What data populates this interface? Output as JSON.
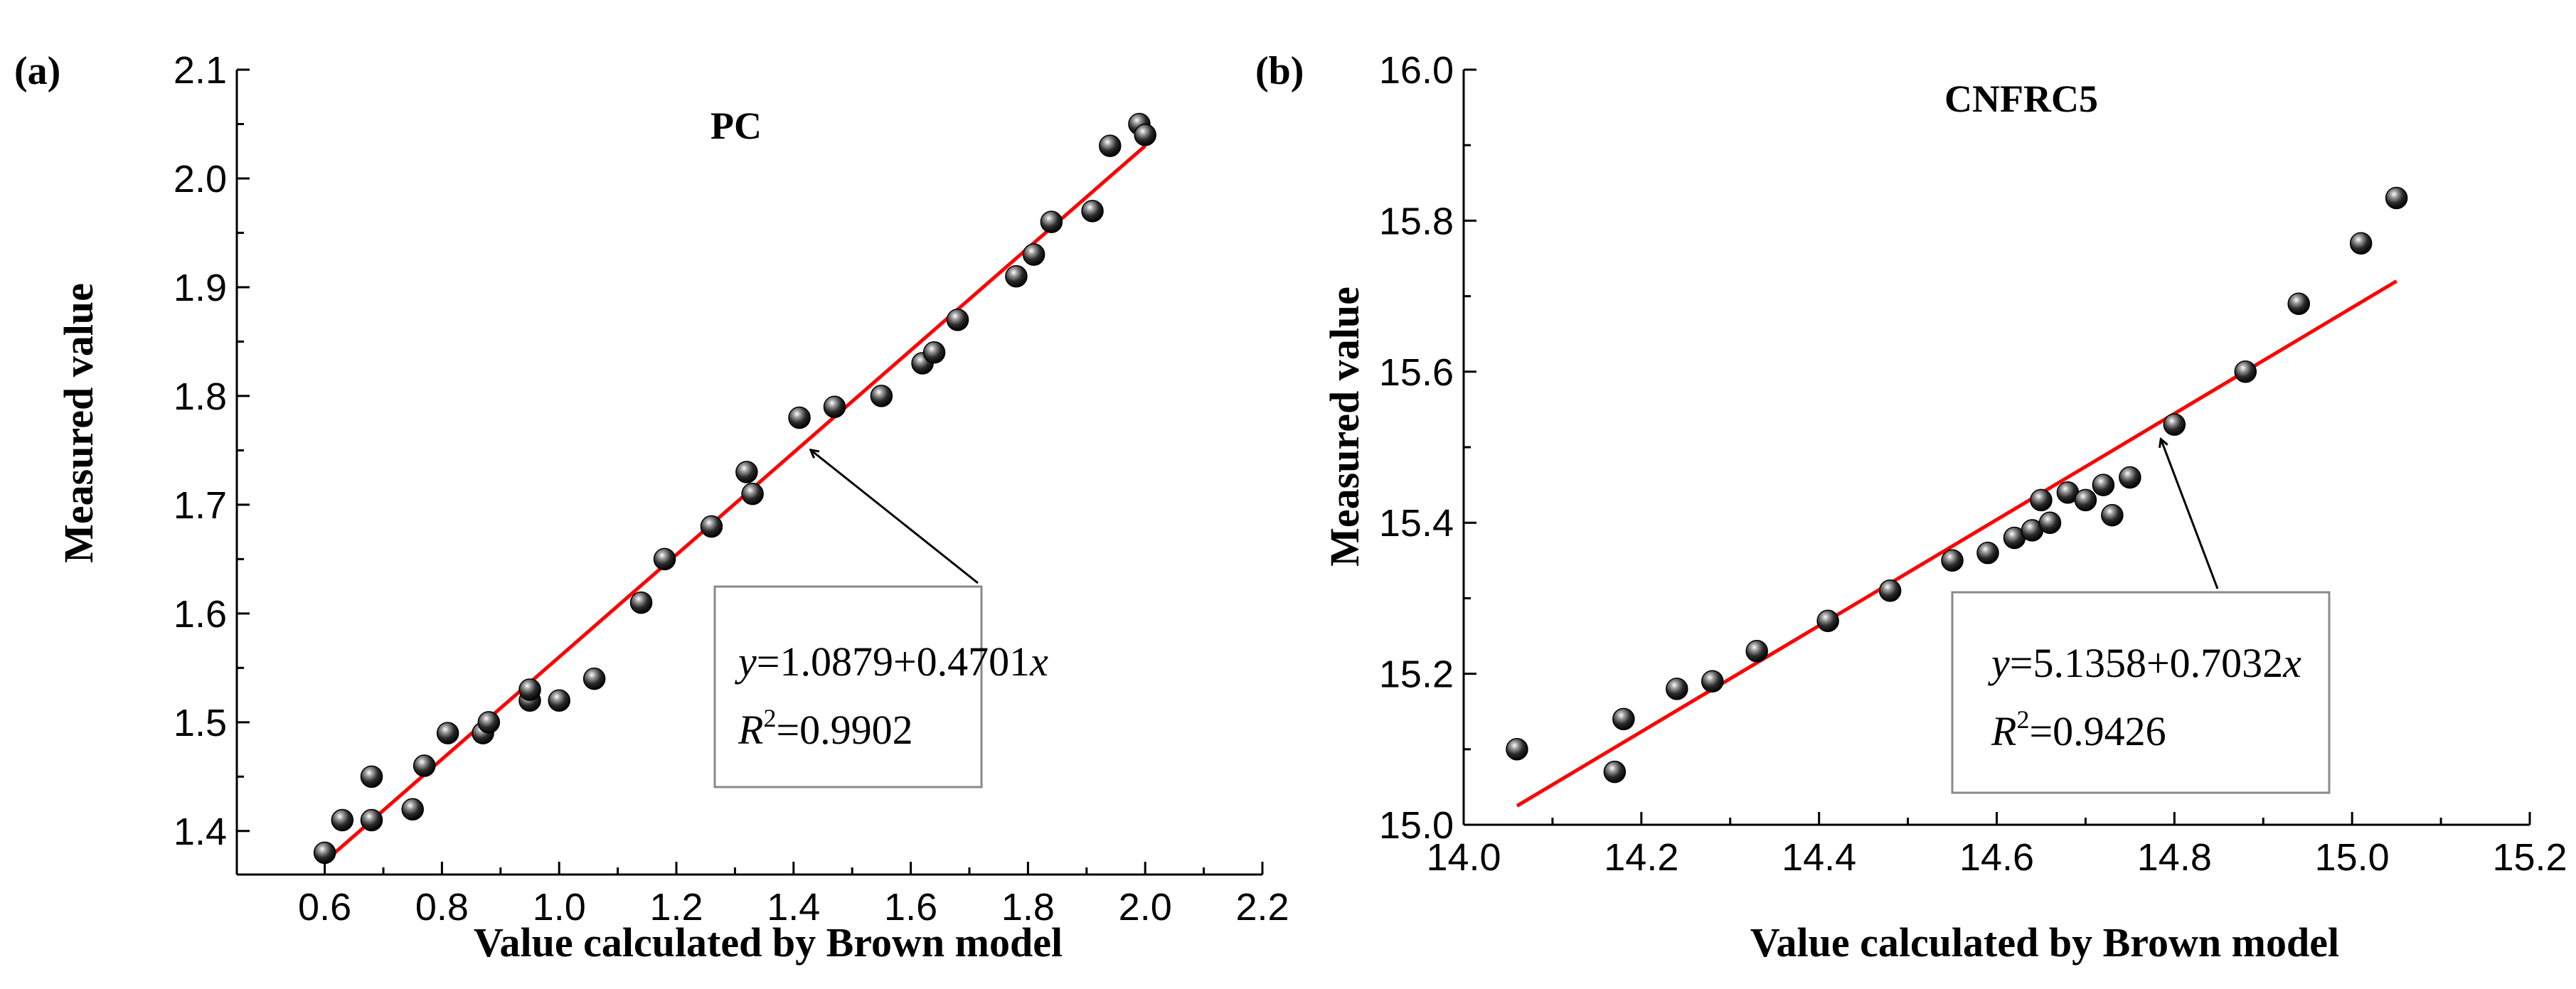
{
  "chart_data": [
    {
      "panel_label": "(a)",
      "type": "scatter",
      "title": "PC",
      "xlabel": "Value calculated by Brown model",
      "ylabel": "Measured value",
      "xlim": [
        0.45,
        2.2
      ],
      "ylim": [
        1.36,
        2.1
      ],
      "xticks": [
        0.6,
        0.8,
        1.0,
        1.2,
        1.4,
        1.6,
        1.8,
        2.0,
        2.2
      ],
      "xtick_labels": [
        "0.6",
        "0.8",
        "1.0",
        "1.2",
        "1.4",
        "1.6",
        "1.8",
        "2.0",
        "2.2"
      ],
      "yticks": [
        1.4,
        1.5,
        1.6,
        1.7,
        1.8,
        1.9,
        2.0,
        2.1
      ],
      "ytick_labels": [
        "1.4",
        "1.5",
        "1.6",
        "1.7",
        "1.8",
        "1.9",
        "2.0",
        "2.1"
      ],
      "points": [
        [
          0.6,
          1.38
        ],
        [
          0.63,
          1.41
        ],
        [
          0.68,
          1.45
        ],
        [
          0.68,
          1.41
        ],
        [
          0.75,
          1.42
        ],
        [
          0.77,
          1.46
        ],
        [
          0.81,
          1.49
        ],
        [
          0.87,
          1.49
        ],
        [
          0.88,
          1.5
        ],
        [
          0.95,
          1.52
        ],
        [
          0.95,
          1.53
        ],
        [
          1.0,
          1.52
        ],
        [
          1.06,
          1.54
        ],
        [
          1.14,
          1.61
        ],
        [
          1.18,
          1.65
        ],
        [
          1.26,
          1.68
        ],
        [
          1.32,
          1.73
        ],
        [
          1.33,
          1.71
        ],
        [
          1.41,
          1.78
        ],
        [
          1.47,
          1.79
        ],
        [
          1.55,
          1.8
        ],
        [
          1.62,
          1.83
        ],
        [
          1.64,
          1.84
        ],
        [
          1.68,
          1.87
        ],
        [
          1.78,
          1.91
        ],
        [
          1.81,
          1.93
        ],
        [
          1.84,
          1.96
        ],
        [
          1.91,
          1.97
        ],
        [
          1.94,
          2.03
        ],
        [
          1.99,
          2.05
        ],
        [
          2.0,
          2.04
        ]
      ],
      "fit_line": {
        "x_start": 0.6,
        "x_end": 2.0,
        "y_start": 1.372,
        "y_end": 2.03
      },
      "equation": {
        "y_var": "y",
        "y_rest": "=1.0879+0.4701",
        "x_var": "x",
        "r_var": "R",
        "r_sup": "2",
        "r_rest": "=0.9902"
      },
      "arrow_target": [
        1.43,
        1.75
      ]
    },
    {
      "panel_label": "(b)",
      "type": "scatter",
      "title": "CNFRC5",
      "xlabel": "Value calculated by Brown model",
      "ylabel": "Measured value",
      "xlim": [
        14.0,
        15.2
      ],
      "ylim": [
        15.0,
        16.0
      ],
      "xticks": [
        14.0,
        14.2,
        14.4,
        14.6,
        14.8,
        15.0,
        15.2
      ],
      "xtick_labels": [
        "14.0",
        "14.2",
        "14.4",
        "14.6",
        "14.8",
        "15.0",
        "15.2"
      ],
      "yticks": [
        15.0,
        15.2,
        15.4,
        15.6,
        15.8,
        16.0
      ],
      "ytick_labels": [
        "15.0",
        "15.2",
        "15.4",
        "15.6",
        "15.8",
        "16.0"
      ],
      "points": [
        [
          14.06,
          15.1
        ],
        [
          14.17,
          15.07
        ],
        [
          14.18,
          15.14
        ],
        [
          14.24,
          15.18
        ],
        [
          14.28,
          15.19
        ],
        [
          14.33,
          15.23
        ],
        [
          14.41,
          15.27
        ],
        [
          14.48,
          15.31
        ],
        [
          14.55,
          15.35
        ],
        [
          14.59,
          15.36
        ],
        [
          14.62,
          15.38
        ],
        [
          14.64,
          15.39
        ],
        [
          14.65,
          15.43
        ],
        [
          14.66,
          15.4
        ],
        [
          14.68,
          15.44
        ],
        [
          14.7,
          15.43
        ],
        [
          14.72,
          15.45
        ],
        [
          14.73,
          15.41
        ],
        [
          14.75,
          15.46
        ],
        [
          14.8,
          15.53
        ],
        [
          14.88,
          15.6
        ],
        [
          14.94,
          15.69
        ],
        [
          15.01,
          15.77
        ],
        [
          15.05,
          15.83
        ]
      ],
      "fit_line": {
        "x_start": 14.06,
        "x_end": 15.05,
        "y_start": 15.025,
        "y_end": 15.72
      },
      "equation": {
        "y_var": "y",
        "y_rest": "=5.1358+0.7032",
        "x_var": "x",
        "r_var": "R",
        "r_sup": "2",
        "r_rest": "=0.9426"
      },
      "arrow_target": [
        14.785,
        15.51
      ]
    }
  ]
}
